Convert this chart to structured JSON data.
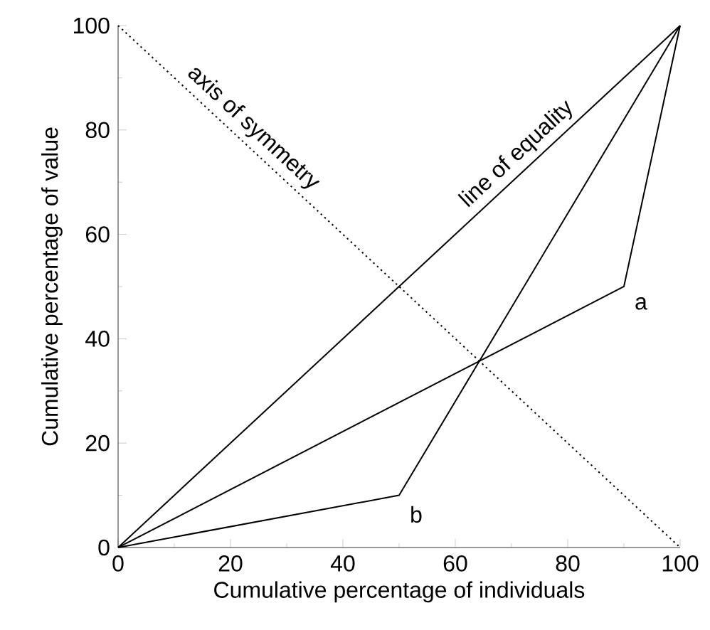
{
  "chart_data": {
    "type": "line",
    "xlabel": "Cumulative percentage of individuals",
    "ylabel": "Cumulative percentage of value",
    "xlim": [
      0,
      100
    ],
    "ylim": [
      0,
      100
    ],
    "xticks": [
      0,
      20,
      40,
      60,
      80,
      100
    ],
    "yticks": [
      0,
      20,
      40,
      60,
      80,
      100
    ],
    "grid": false,
    "marker": "none",
    "series": [
      {
        "color": "#000000",
        "line_style": "solid",
        "x": [
          0,
          100
        ],
        "values": [
          0,
          100
        ]
      },
      {
        "color": "#000000",
        "line_style": "dotted",
        "x": [
          0,
          100
        ],
        "values": [
          100,
          0
        ]
      },
      {
        "color": "#000000",
        "line_style": "solid",
        "x": [
          0,
          90,
          100
        ],
        "values": [
          0,
          50,
          100
        ]
      },
      {
        "color": "#000000",
        "line_style": "solid",
        "x": [
          0,
          50,
          100
        ],
        "values": [
          0,
          10,
          100
        ]
      }
    ],
    "annotations": [
      {
        "text": "line of equality",
        "x": 73,
        "y": 73
      },
      {
        "text": "axis of symmetry",
        "x": 22,
        "y": 78
      },
      {
        "text": "a",
        "x": 90,
        "y": 50
      },
      {
        "text": "b",
        "x": 50,
        "y": 10
      }
    ]
  }
}
